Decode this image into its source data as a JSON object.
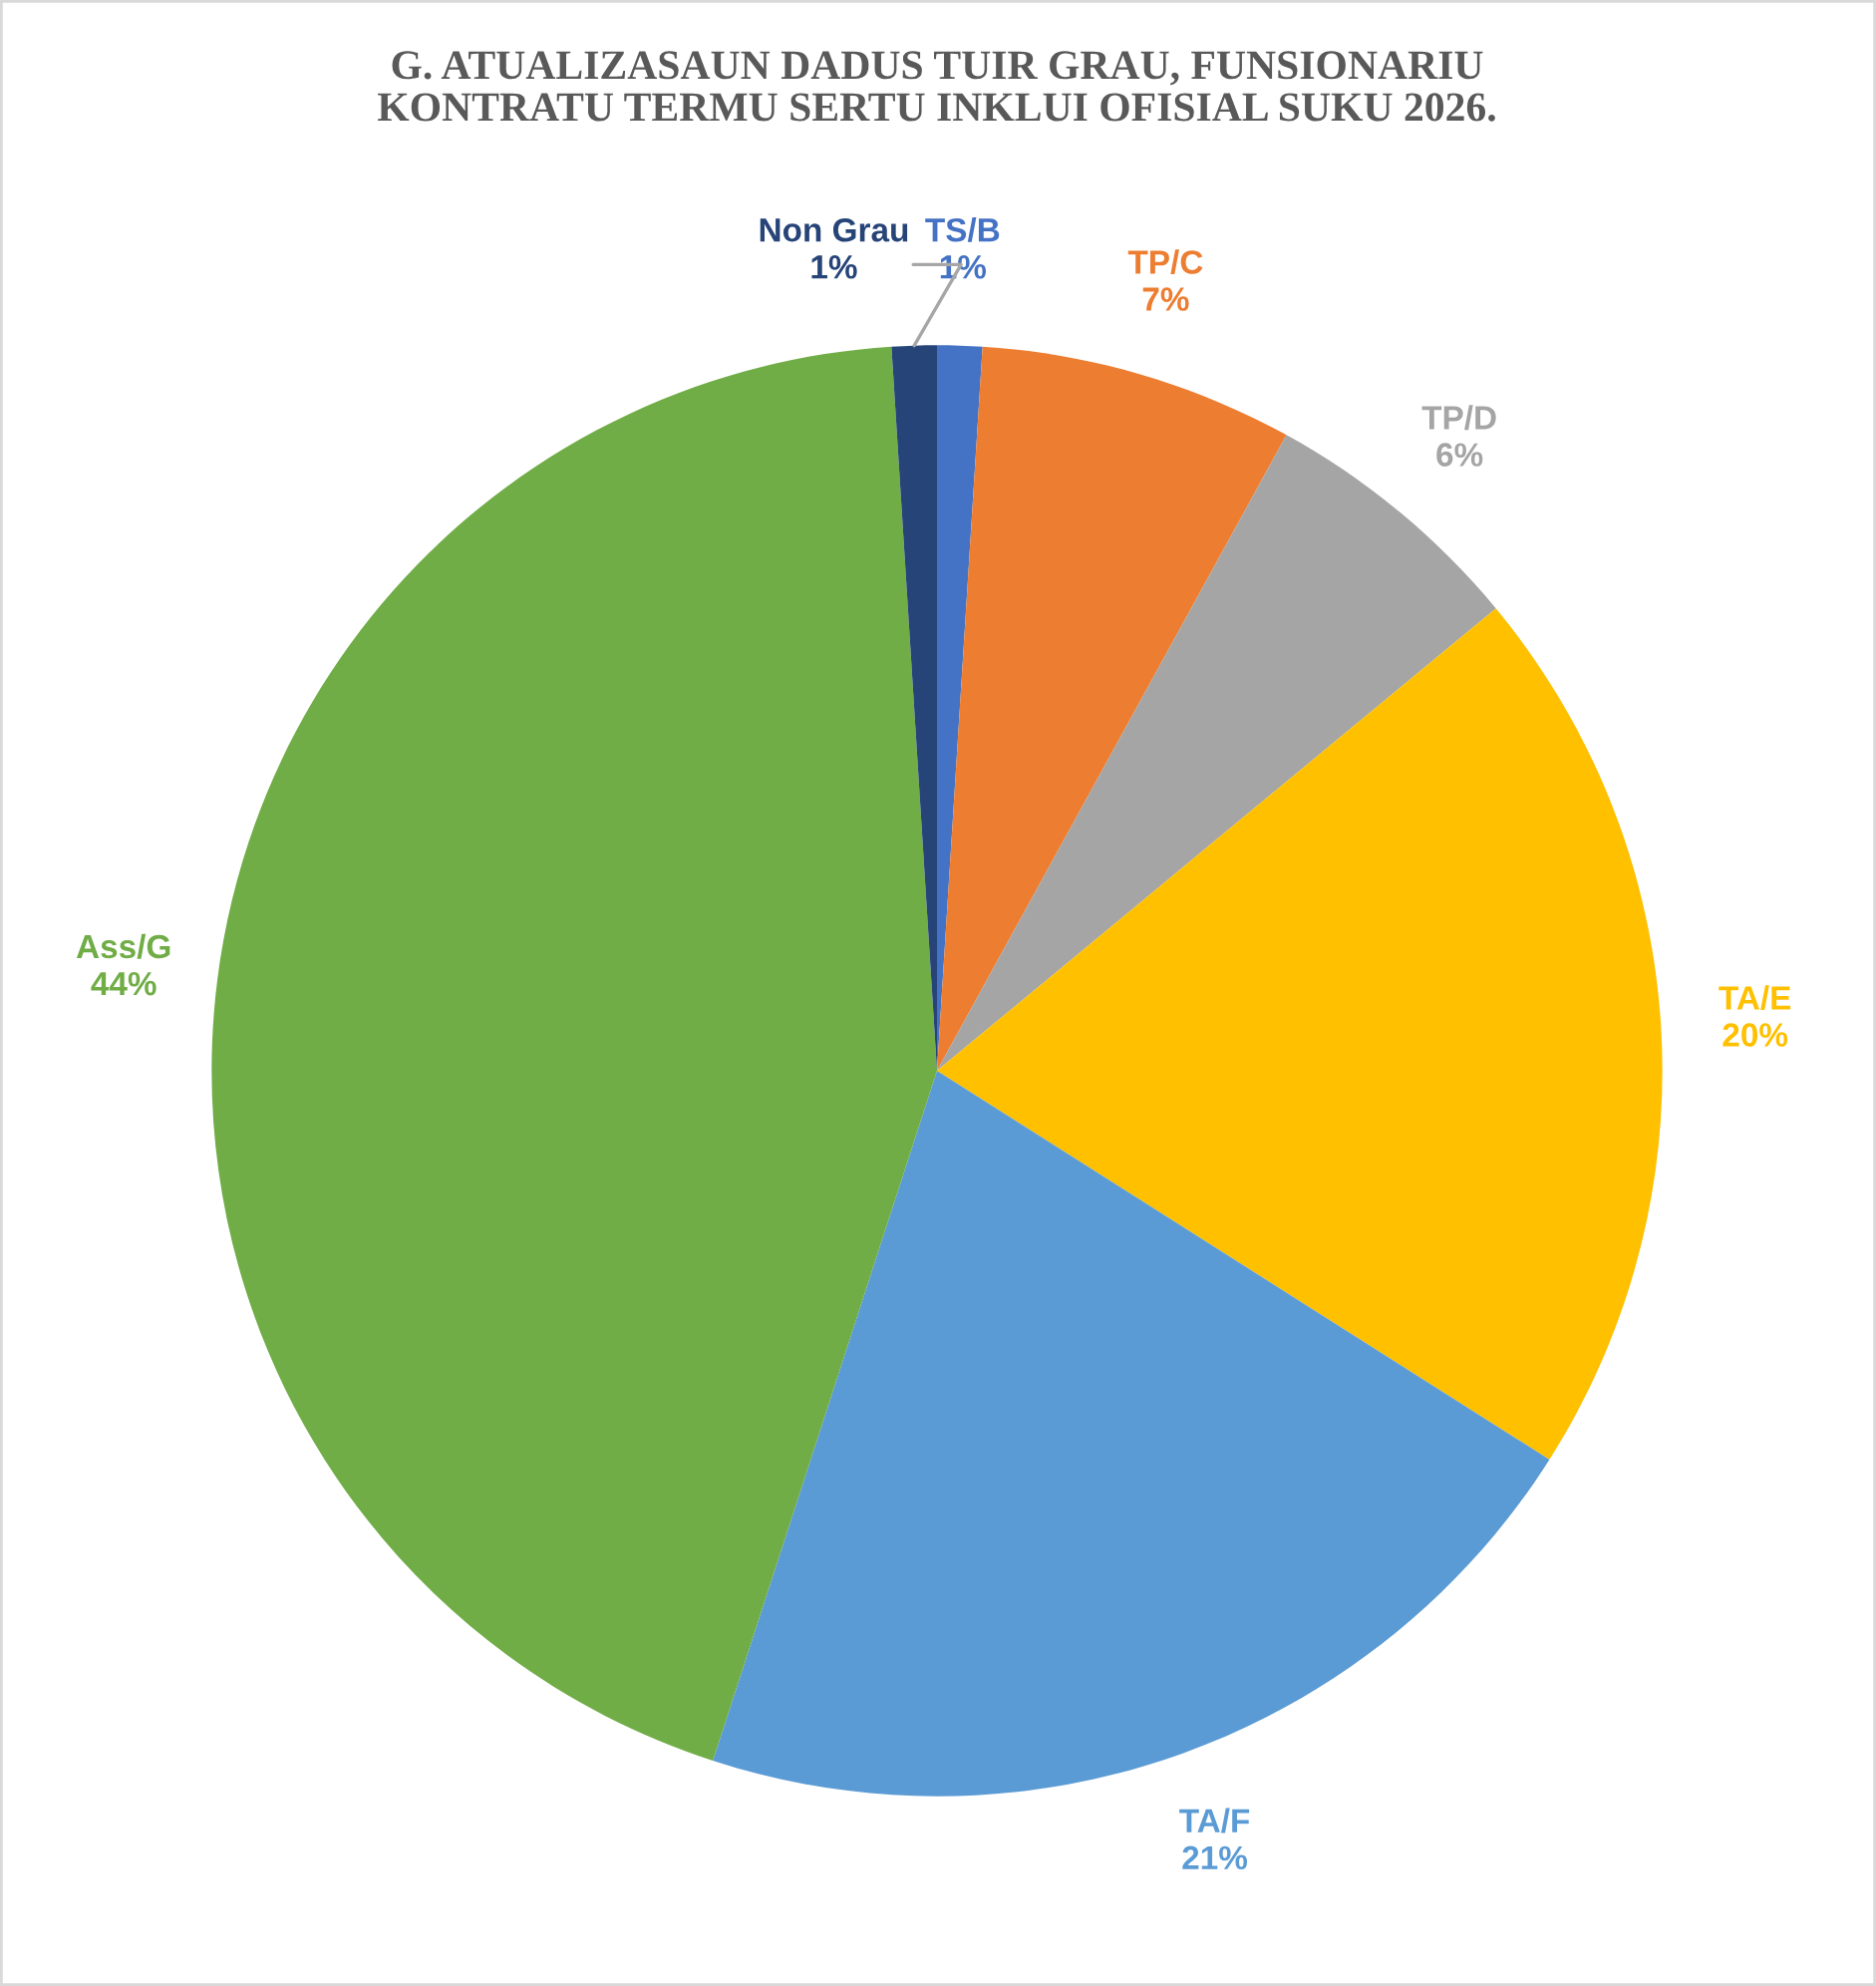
{
  "chart_data": {
    "type": "pie",
    "title": "G. ATUALIZASAUN DADUS TUIR GRAU, FUNSIONARIU KONTRATU TERMU SERTU INKLUI OFISIAL SUKU 2026.",
    "categories": [
      "TS/B",
      "TP/C",
      "TP/D",
      "TA/E",
      "TA/F",
      "Ass/G",
      "Non Grau"
    ],
    "values": [
      1,
      7,
      6,
      20,
      21,
      44,
      1
    ],
    "value_labels": [
      "1%",
      "7%",
      "6%",
      "20%",
      "21%",
      "44%",
      "1%"
    ],
    "colors": [
      "#4472c4",
      "#ed7d31",
      "#a5a5a5",
      "#ffc000",
      "#5b9bd5",
      "#70ad47",
      "#264478"
    ],
    "legend": false
  }
}
